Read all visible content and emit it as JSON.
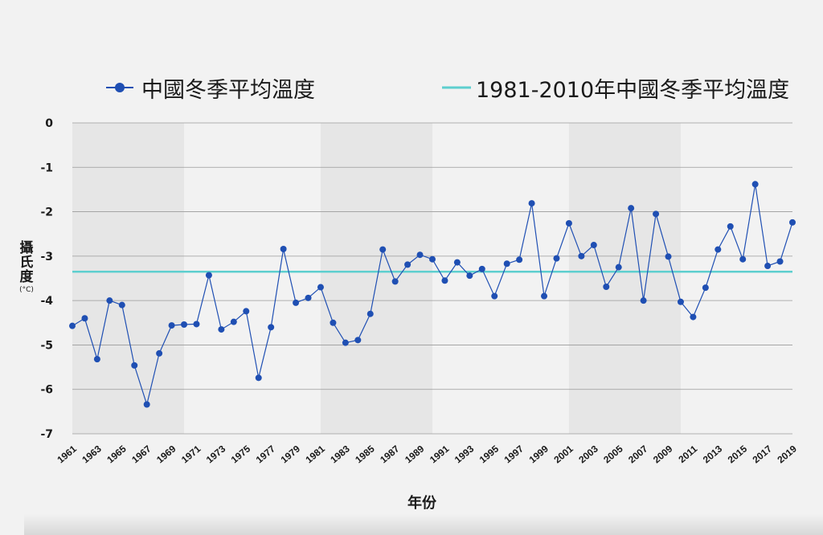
{
  "legend": {
    "series_label": "中國冬季平均溫度",
    "average_label": "1981-2010年中國冬季平均溫度"
  },
  "axes": {
    "ylabel": "攝氏度",
    "yunit": "(°C)",
    "xlabel": "年份"
  },
  "colors": {
    "series": "#1f4fb3",
    "average_line": "#5ecfcf",
    "band": "#e6e6e6",
    "background": "#f2f2f2"
  },
  "chart_data": {
    "type": "line",
    "ylabel": "攝氏度 (°C)",
    "xlabel": "年份",
    "ylim": [
      -7,
      0
    ],
    "yticks": [
      0,
      -1,
      -2,
      -3,
      -4,
      -5,
      -6,
      -7
    ],
    "xlim": [
      1961,
      2019
    ],
    "xticks": [
      1961,
      1963,
      1965,
      1967,
      1969,
      1971,
      1973,
      1975,
      1977,
      1979,
      1981,
      1983,
      1985,
      1987,
      1989,
      1991,
      1993,
      1995,
      1997,
      1999,
      2001,
      2003,
      2005,
      2007,
      2009,
      2011,
      2013,
      2015,
      2017,
      2019
    ],
    "grid": true,
    "shaded_bands": [
      [
        1961,
        1970
      ],
      [
        1981,
        1990
      ],
      [
        2001,
        2010
      ]
    ],
    "series": [
      {
        "name": "中國冬季平均溫度",
        "x": [
          1961,
          1962,
          1963,
          1964,
          1965,
          1966,
          1967,
          1968,
          1969,
          1970,
          1971,
          1972,
          1973,
          1974,
          1975,
          1976,
          1977,
          1978,
          1979,
          1980,
          1981,
          1982,
          1983,
          1984,
          1985,
          1986,
          1987,
          1988,
          1989,
          1990,
          1991,
          1992,
          1993,
          1994,
          1995,
          1996,
          1997,
          1998,
          1999,
          2000,
          2001,
          2002,
          2003,
          2004,
          2005,
          2006,
          2007,
          2008,
          2009,
          2010,
          2011,
          2012,
          2013,
          2014,
          2015,
          2016,
          2017,
          2018,
          2019
        ],
        "values": [
          -4.57,
          -4.4,
          -5.32,
          -4.0,
          -4.1,
          -5.46,
          -6.34,
          -5.19,
          -4.56,
          -4.54,
          -4.53,
          -3.43,
          -4.65,
          -4.48,
          -4.24,
          -5.74,
          -4.6,
          -2.84,
          -4.05,
          -3.94,
          -3.7,
          -4.5,
          -4.95,
          -4.89,
          -4.3,
          -2.85,
          -3.57,
          -3.19,
          -2.97,
          -3.07,
          -3.55,
          -3.14,
          -3.44,
          -3.29,
          -3.9,
          -3.17,
          -3.08,
          -1.81,
          -3.9,
          -3.05,
          -2.26,
          -3.0,
          -2.75,
          -3.69,
          -3.25,
          -1.92,
          -4.0,
          -2.05,
          -3.01,
          -4.03,
          -4.37,
          -3.71,
          -2.85,
          -2.33,
          -3.07,
          -1.38,
          -3.22,
          -3.12,
          -2.24
        ]
      },
      {
        "name": "1981-2010年中國冬季平均溫度",
        "x": [
          1961,
          2019
        ],
        "values": [
          -3.35,
          -3.35
        ]
      }
    ]
  }
}
